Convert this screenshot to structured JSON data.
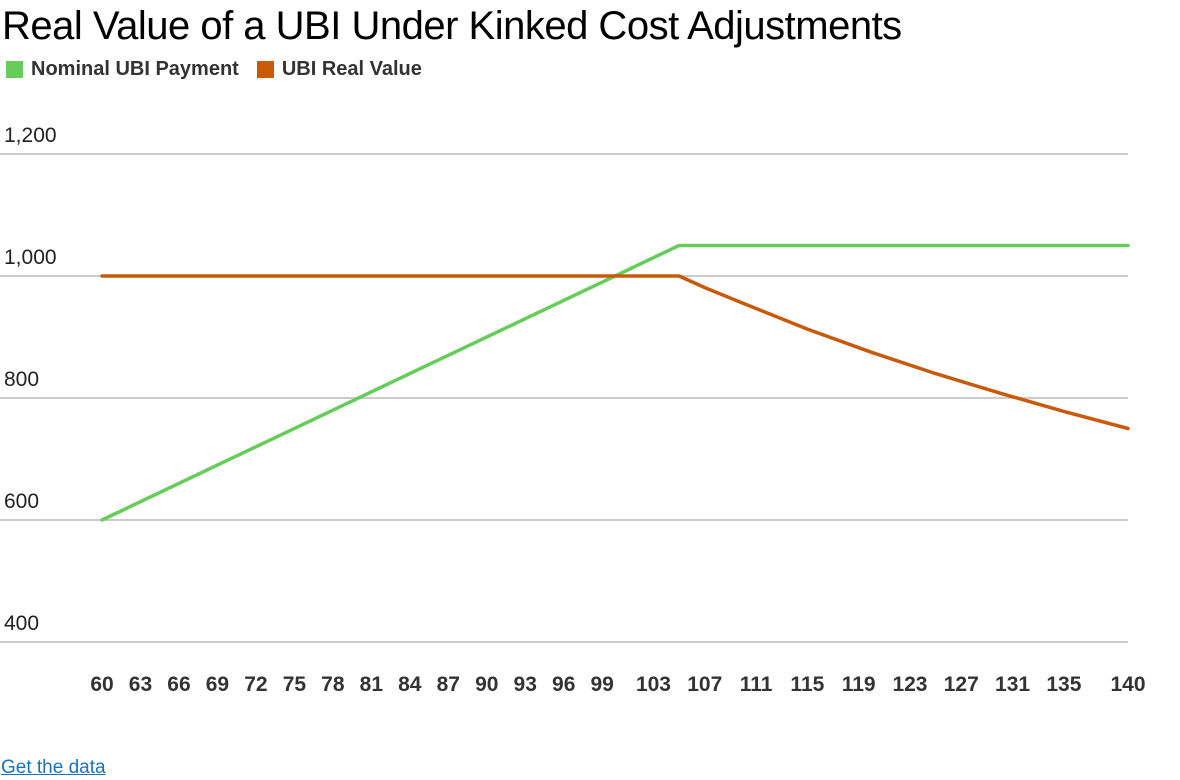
{
  "chart_data": {
    "type": "line",
    "title": "Real Value of a UBI Under Kinked Cost Adjustments",
    "xlabel": "",
    "ylabel": "",
    "x_ticks": [
      "60",
      "63",
      "66",
      "69",
      "72",
      "75",
      "78",
      "81",
      "84",
      "87",
      "90",
      "93",
      "96",
      "99",
      "103",
      "107",
      "111",
      "115",
      "119",
      "123",
      "127",
      "131",
      "135",
      "140"
    ],
    "y_ticks": [
      "400",
      "600",
      "800",
      "1,000",
      "1,200"
    ],
    "xlim": [
      60,
      140
    ],
    "ylim": [
      400,
      1200
    ],
    "grid": true,
    "legend": "top-left",
    "series": [
      {
        "name": "Nominal UBI Payment",
        "color": "#66cc5a",
        "x": [
          60,
          105,
          140
        ],
        "y": [
          600,
          1050,
          1050
        ]
      },
      {
        "name": "UBI Real Value",
        "color": "#c85a0a",
        "x": [
          60,
          105,
          107,
          110,
          115,
          120,
          125,
          130,
          135,
          140
        ],
        "y": [
          1000,
          1000,
          981,
          955,
          913,
          875,
          840,
          808,
          778,
          750
        ]
      }
    ]
  },
  "link_label": "Get the data"
}
